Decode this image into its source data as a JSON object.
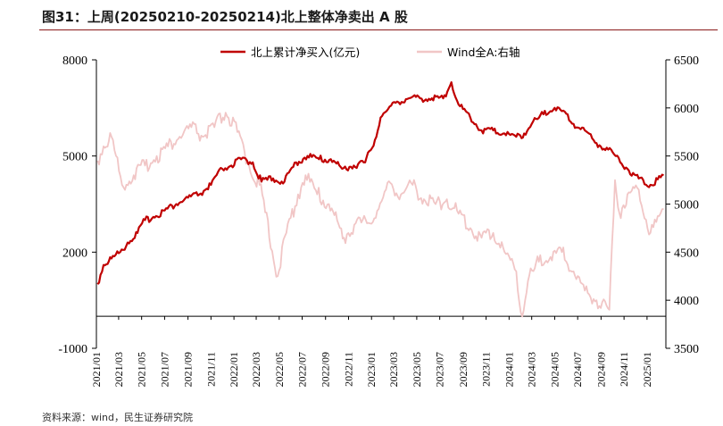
{
  "title": "图31：上周(20250210-20250214)北上整体净卖出 A 股",
  "source": "资料来源：wind，民生证券研究院",
  "colors": {
    "left_series": "#c00000",
    "right_series": "#f1c6c6",
    "title_rule": "#8a1a1a"
  },
  "chart_data": {
    "type": "line",
    "legend_position": "top-center",
    "grid": false,
    "x_ticks": [
      "2021/01",
      "2021/03",
      "2021/05",
      "2021/07",
      "2021/09",
      "2021/11",
      "2022/01",
      "2022/03",
      "2022/05",
      "2022/07",
      "2022/09",
      "2022/11",
      "2023/01",
      "2023/03",
      "2023/05",
      "2023/07",
      "2023/09",
      "2023/11",
      "2024/01",
      "2024/03",
      "2024/05",
      "2024/07",
      "2024/09",
      "2024/11",
      "2025/01"
    ],
    "y_left": {
      "min": -1000,
      "max": 8000,
      "ticks": [
        "-1000",
        "2000",
        "5000",
        "8000"
      ]
    },
    "y_right": {
      "min": 3500,
      "max": 6500,
      "ticks": [
        "3500",
        "4000",
        "4500",
        "5000",
        "5500",
        "6000",
        "6500"
      ]
    },
    "series": [
      {
        "name": "北上累计净买入(亿元)",
        "axis": "left",
        "points": [
          [
            "2021/01/04",
            1000
          ],
          [
            "2021/01/20",
            1600
          ],
          [
            "2021/02/10",
            1800
          ],
          [
            "2021/03/05",
            2000
          ],
          [
            "2021/03/25",
            2300
          ],
          [
            "2021/04/20",
            2600
          ],
          [
            "2021/05/10",
            3000
          ],
          [
            "2021/06/01",
            3100
          ],
          [
            "2021/07/01",
            3300
          ],
          [
            "2021/08/01",
            3500
          ],
          [
            "2021/09/01",
            3700
          ],
          [
            "2021/10/01",
            3800
          ],
          [
            "2021/11/01",
            4100
          ],
          [
            "2021/12/01",
            4600
          ],
          [
            "2021/12/25",
            4700
          ],
          [
            "2022/01/20",
            4900
          ],
          [
            "2022/02/20",
            4800
          ],
          [
            "2022/03/15",
            4200
          ],
          [
            "2022/04/15",
            4300
          ],
          [
            "2022/05/15",
            4200
          ],
          [
            "2022/06/15",
            4800
          ],
          [
            "2022/07/15",
            5000
          ],
          [
            "2022/08/15",
            4900
          ],
          [
            "2022/09/15",
            4900
          ],
          [
            "2022/10/15",
            4600
          ],
          [
            "2022/11/15",
            4700
          ],
          [
            "2022/12/15",
            4800
          ],
          [
            "2023/01/10",
            5500
          ],
          [
            "2023/01/25",
            6200
          ],
          [
            "2023/02/10",
            6400
          ],
          [
            "2023/03/10",
            6700
          ],
          [
            "2023/04/10",
            6800
          ],
          [
            "2023/05/10",
            6800
          ],
          [
            "2023/06/10",
            6800
          ],
          [
            "2023/07/10",
            6800
          ],
          [
            "2023/08/01",
            7300
          ],
          [
            "2023/08/20",
            6600
          ],
          [
            "2023/09/20",
            6200
          ],
          [
            "2023/10/20",
            5800
          ],
          [
            "2023/11/20",
            5800
          ],
          [
            "2023/12/20",
            5700
          ],
          [
            "2024/01/20",
            5600
          ],
          [
            "2024/02/10",
            5700
          ],
          [
            "2024/03/01",
            6000
          ],
          [
            "2024/04/01",
            6300
          ],
          [
            "2024/05/01",
            6500
          ],
          [
            "2024/05/20",
            6400
          ],
          [
            "2024/06/20",
            6000
          ],
          [
            "2024/07/20",
            5800
          ],
          [
            "2024/08/20",
            5400
          ],
          [
            "2024/09/20",
            5200
          ],
          [
            "2024/10/10",
            5000
          ],
          [
            "2024/11/10",
            4600
          ],
          [
            "2024/12/10",
            4300
          ],
          [
            "2025/01/10",
            4100
          ],
          [
            "2025/02/14",
            4400
          ]
        ]
      },
      {
        "name": "Wind全A:右轴",
        "axis": "right",
        "points": [
          [
            "2021/01/04",
            5450
          ],
          [
            "2021/01/20",
            5600
          ],
          [
            "2021/02/10",
            5700
          ],
          [
            "2021/03/10",
            5200
          ],
          [
            "2021/04/10",
            5300
          ],
          [
            "2021/05/10",
            5400
          ],
          [
            "2021/06/10",
            5500
          ],
          [
            "2021/07/10",
            5600
          ],
          [
            "2021/08/10",
            5700
          ],
          [
            "2021/09/10",
            5800
          ],
          [
            "2021/10/10",
            5700
          ],
          [
            "2021/11/10",
            5800
          ],
          [
            "2021/12/10",
            5950
          ],
          [
            "2022/01/10",
            5750
          ],
          [
            "2022/02/10",
            5400
          ],
          [
            "2022/03/10",
            5200
          ],
          [
            "2022/04/27",
            4250
          ],
          [
            "2022/05/20",
            4700
          ],
          [
            "2022/06/20",
            5100
          ],
          [
            "2022/07/10",
            5300
          ],
          [
            "2022/08/10",
            5100
          ],
          [
            "2022/09/10",
            5000
          ],
          [
            "2022/10/20",
            4650
          ],
          [
            "2022/11/20",
            4800
          ],
          [
            "2022/12/20",
            4800
          ],
          [
            "2023/01/20",
            4950
          ],
          [
            "2023/02/20",
            5220
          ],
          [
            "2023/03/20",
            5100
          ],
          [
            "2023/04/20",
            5200
          ],
          [
            "2023/05/20",
            5050
          ],
          [
            "2023/06/20",
            5000
          ],
          [
            "2023/07/20",
            5050
          ],
          [
            "2023/08/20",
            4900
          ],
          [
            "2023/09/20",
            4750
          ],
          [
            "2023/10/20",
            4650
          ],
          [
            "2023/11/20",
            4700
          ],
          [
            "2023/12/20",
            4500
          ],
          [
            "2024/01/20",
            4300
          ],
          [
            "2024/02/05",
            3830
          ],
          [
            "2024/02/20",
            4200
          ],
          [
            "2024/03/20",
            4400
          ],
          [
            "2024/04/20",
            4450
          ],
          [
            "2024/05/20",
            4500
          ],
          [
            "2024/06/20",
            4300
          ],
          [
            "2024/07/20",
            4100
          ],
          [
            "2024/08/20",
            4000
          ],
          [
            "2024/09/23",
            3900
          ],
          [
            "2024/10/08",
            5250
          ],
          [
            "2024/10/20",
            4900
          ],
          [
            "2024/11/10",
            5100
          ],
          [
            "2024/12/10",
            5150
          ],
          [
            "2025/01/10",
            4700
          ],
          [
            "2025/02/14",
            4950
          ]
        ]
      }
    ]
  }
}
